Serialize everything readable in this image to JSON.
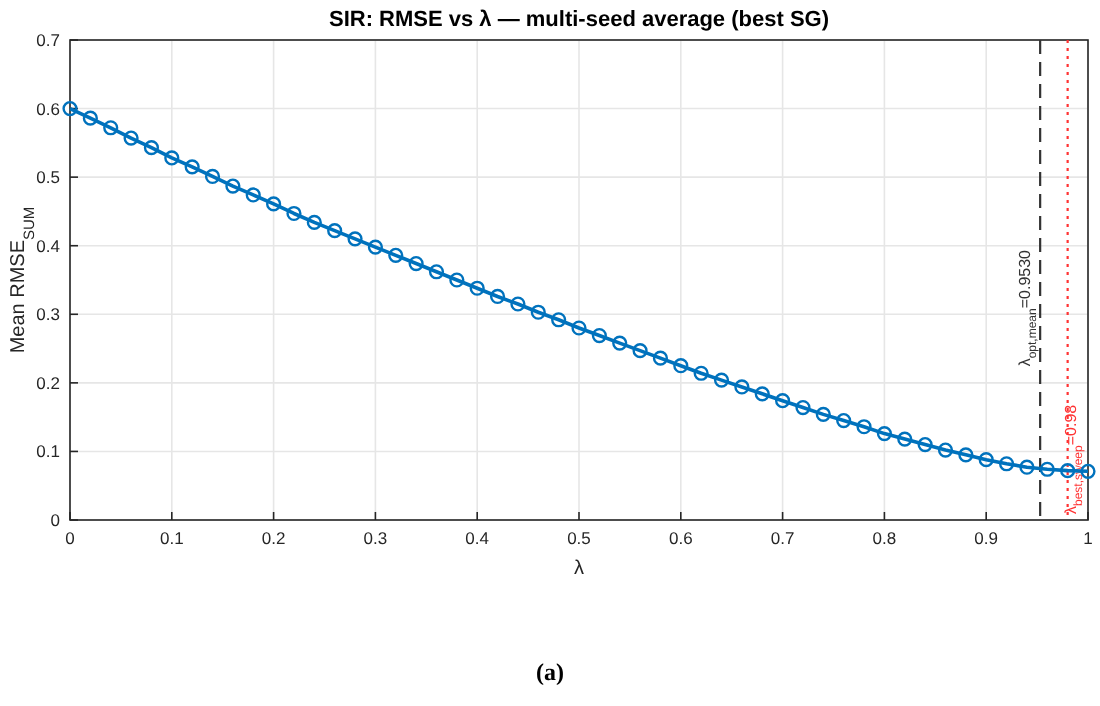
{
  "chart_data": {
    "type": "line",
    "title": "SIR: RMSE vs λ — multi-seed average (best SG)",
    "xlabel": "λ",
    "ylabel": "Mean RMSE$_{SUM}$",
    "x": [
      0,
      0.02,
      0.04,
      0.06,
      0.08,
      0.1,
      0.12,
      0.14,
      0.16,
      0.18,
      0.2,
      0.22,
      0.24,
      0.26,
      0.28,
      0.3,
      0.32,
      0.34,
      0.36,
      0.38,
      0.4,
      0.42,
      0.44,
      0.46,
      0.48,
      0.5,
      0.52,
      0.54,
      0.56,
      0.58,
      0.6,
      0.62,
      0.64,
      0.66,
      0.68,
      0.7,
      0.72,
      0.74,
      0.76,
      0.78,
      0.8,
      0.82,
      0.84,
      0.86,
      0.88,
      0.9,
      0.92,
      0.94,
      0.96,
      0.98,
      1
    ],
    "series": [
      {
        "color": "#0072bd",
        "values": [
          0.6,
          0.586,
          0.572,
          0.557,
          0.543,
          0.528,
          0.515,
          0.501,
          0.487,
          0.474,
          0.461,
          0.447,
          0.434,
          0.422,
          0.41,
          0.398,
          0.386,
          0.374,
          0.362,
          0.35,
          0.338,
          0.326,
          0.315,
          0.303,
          0.292,
          0.28,
          0.269,
          0.258,
          0.247,
          0.236,
          0.225,
          0.214,
          0.204,
          0.194,
          0.184,
          0.174,
          0.164,
          0.154,
          0.145,
          0.136,
          0.126,
          0.118,
          0.11,
          0.102,
          0.095,
          0.088,
          0.082,
          0.077,
          0.074,
          0.072,
          0.071
        ]
      }
    ],
    "xlim": [
      0,
      1
    ],
    "xticks": [
      0,
      0.1,
      0.2,
      0.3,
      0.4,
      0.5,
      0.6,
      0.7,
      0.8,
      0.9,
      1
    ],
    "ylim": [
      0,
      0.7
    ],
    "yticks": [
      0,
      0.1,
      0.2,
      0.3,
      0.4,
      0.5,
      0.6,
      0.7
    ],
    "grid": true,
    "marker": "circle",
    "line_style": "solid",
    "ref_lines": [
      {
        "axis": "x",
        "value": 0.953,
        "label": "λ$_{opt,mean}$=0.9530",
        "color": "#333333",
        "line_style": "dashed"
      },
      {
        "axis": "x",
        "value": 0.98,
        "label": "λ$_{best,sweep}$=0.98",
        "color": "#ff3333",
        "line_style": "dotted"
      }
    ],
    "annotations": [
      "(a)"
    ]
  }
}
